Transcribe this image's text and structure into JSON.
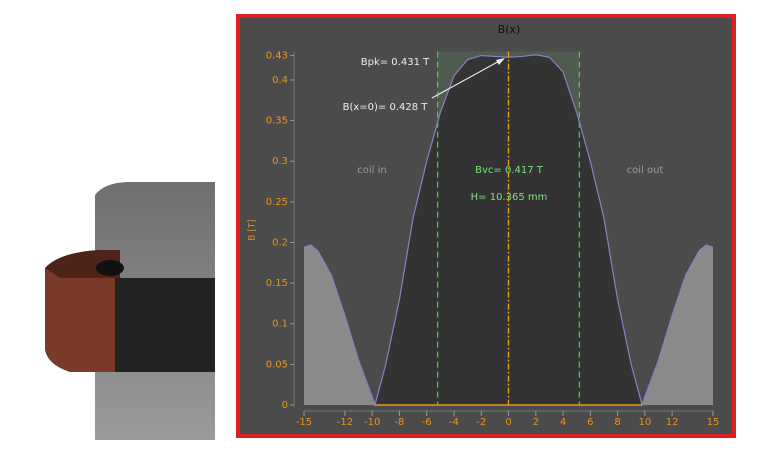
{
  "chart_data": {
    "type": "area",
    "title": "B(x)",
    "ylabel": "B [T]",
    "x": [
      -15,
      -14.5,
      -14,
      -13,
      -12,
      -11,
      -10,
      -9.8,
      -9,
      -8,
      -7,
      -6,
      -5,
      -4,
      -3,
      -2,
      -1,
      0,
      1,
      2,
      3,
      4,
      5,
      6,
      7,
      8,
      9,
      9.8,
      10,
      11,
      12,
      13,
      14,
      14.5,
      15
    ],
    "y": [
      0.194,
      0.197,
      0.19,
      0.16,
      0.11,
      0.055,
      0.01,
      0,
      0.05,
      0.13,
      0.23,
      0.3,
      0.36,
      0.405,
      0.425,
      0.43,
      0.429,
      0.428,
      0.429,
      0.431,
      0.428,
      0.41,
      0.36,
      0.3,
      0.23,
      0.13,
      0.05,
      0,
      0.01,
      0.055,
      0.11,
      0.16,
      0.19,
      0.197,
      0.194
    ],
    "line_color": "#8a7fc8",
    "inner_color": "#333333",
    "outer_color": "#8a8a8a",
    "xlim": [
      -15,
      15
    ],
    "ylim": [
      0,
      0.43
    ],
    "xticks": [
      -15,
      -12,
      -10,
      -8,
      -6,
      -4,
      -2,
      0,
      2,
      4,
      6,
      8,
      10,
      12,
      15
    ],
    "yticks": [
      0,
      0.05,
      0.1,
      0.15,
      0.2,
      0.25,
      0.3,
      0.35,
      0.4,
      0.43
    ],
    "vlines": [
      {
        "x": -5.2,
        "color": "#44cc44"
      },
      {
        "x": 0,
        "color": "#f0a020"
      },
      {
        "x": 5.2,
        "color": "#44cc44"
      }
    ],
    "annotations": [
      "Bpk= 0.431 T",
      "B(x=0)= 0.428 T",
      "Bvc= 0.417 T",
      "H= 10.365 mm",
      "coil in",
      "coil out"
    ]
  }
}
